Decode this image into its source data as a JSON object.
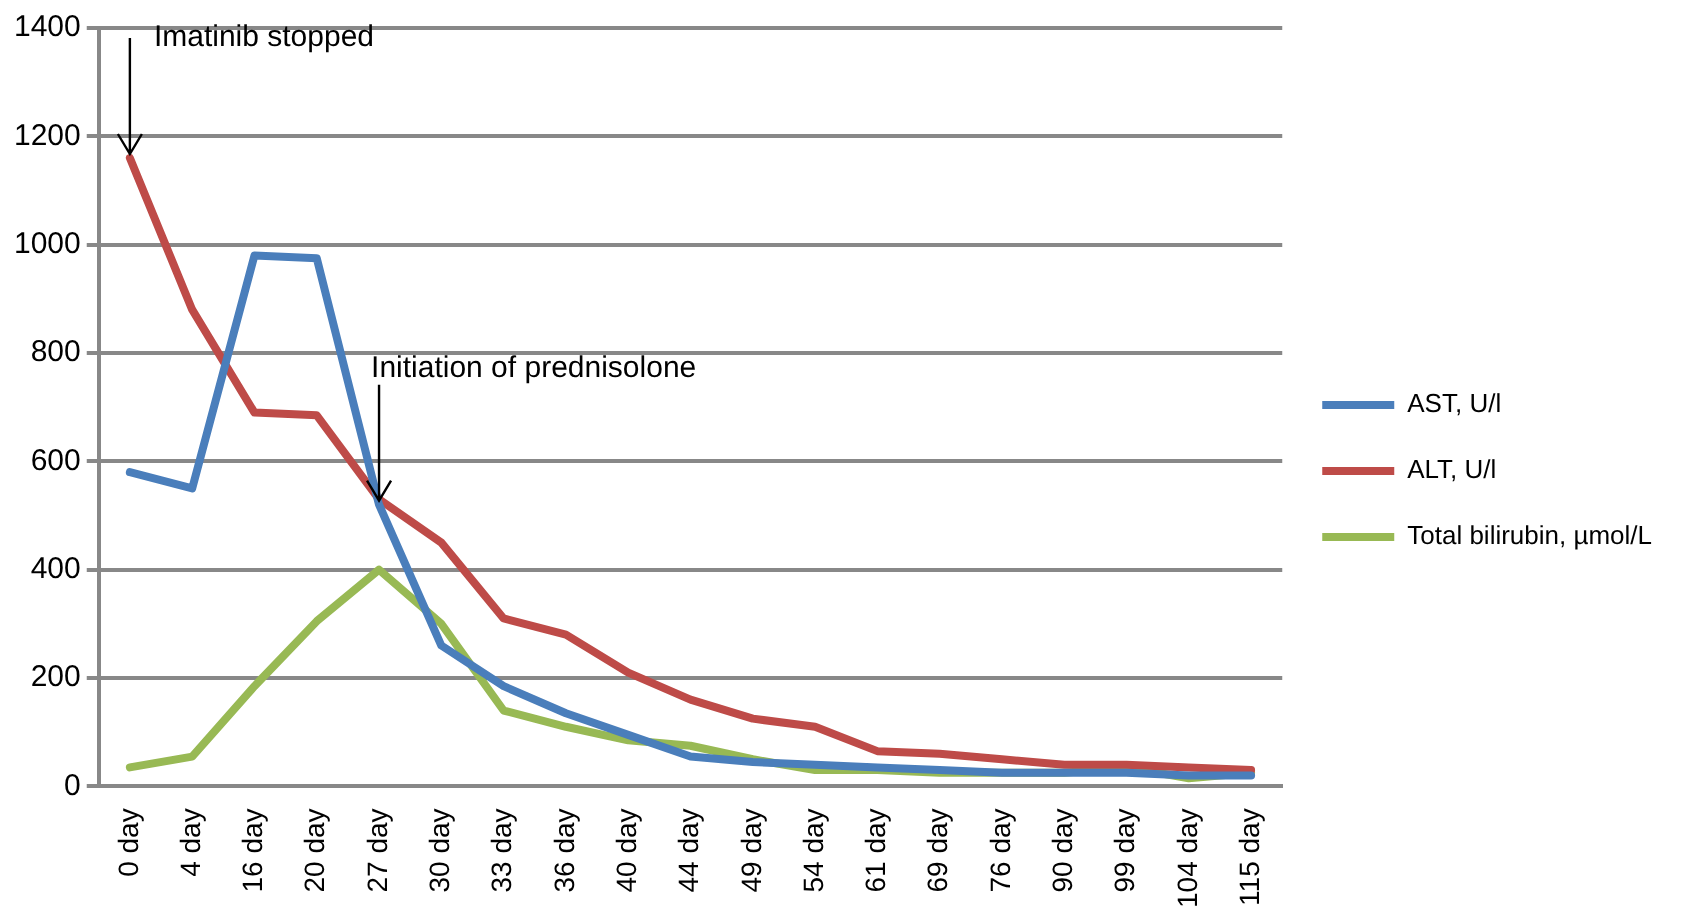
{
  "chart_data": {
    "type": "line",
    "categories": [
      "0 day",
      "4 day",
      "16 day",
      "20 day",
      "27 day",
      "30 day",
      "33 day",
      "36 day",
      "40 day",
      "44 day",
      "49 day",
      "54 day",
      "61 day",
      "69 day",
      "76 day",
      "90 day",
      "99 day",
      "104 day",
      "115 day"
    ],
    "series": [
      {
        "name": "AST, U/l",
        "color": "#4a7ebb",
        "values": [
          580,
          550,
          980,
          975,
          520,
          260,
          185,
          135,
          95,
          55,
          45,
          40,
          35,
          30,
          25,
          25,
          25,
          20,
          20
        ]
      },
      {
        "name": "ALT, U/l",
        "color": "#be4b48",
        "values": [
          1160,
          880,
          690,
          685,
          530,
          450,
          310,
          280,
          210,
          160,
          125,
          110,
          65,
          60,
          50,
          40,
          40,
          35,
          30
        ]
      },
      {
        "name": "Total bilirubin, µmol/L",
        "color": "#98b954",
        "values": [
          35,
          55,
          185,
          305,
          400,
          300,
          140,
          110,
          85,
          75,
          50,
          30,
          30,
          25,
          25,
          25,
          35,
          15,
          25
        ]
      }
    ],
    "ylim": [
      0,
      1400
    ],
    "yticks": [
      0,
      200,
      400,
      600,
      800,
      1000,
      1200,
      1400
    ],
    "grid": "y",
    "legend": "right",
    "marker": "none",
    "line_style": "solid",
    "annotations": [
      {
        "text": "Imatinib stopped",
        "x": "0 day",
        "y": 1160
      },
      {
        "text": "Initiation of prednisolone",
        "x": "27 day",
        "y": 520
      }
    ]
  }
}
